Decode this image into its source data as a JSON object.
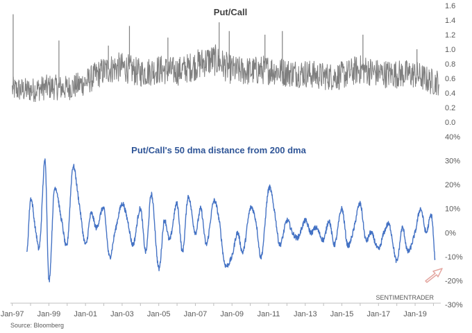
{
  "chart_data": [
    {
      "type": "line",
      "title": "Put/Call",
      "ylim": [
        0,
        1.6
      ],
      "y_ticks": [
        "1.6",
        "1.4",
        "1.2",
        "1.0",
        "0.8",
        "0.6",
        "0.4",
        "0.2",
        "0.0"
      ],
      "grid": false,
      "color": "#7f7f7f",
      "series": [
        {
          "x": [
            1997.0,
            1998.0,
            1999.0,
            2000.0,
            2001.0,
            2002.0,
            2003.0,
            2004.0,
            2005.0,
            2006.0,
            2007.0,
            2008.0,
            2009.0,
            2010.0,
            2011.0,
            2012.0,
            2013.0,
            2014.0,
            2015.0,
            2016.0,
            2017.0,
            2018.0,
            2019.0,
            2020.0
          ],
          "values": [
            0.45,
            0.44,
            0.48,
            0.47,
            0.55,
            0.7,
            0.75,
            0.68,
            0.72,
            0.7,
            0.78,
            0.85,
            0.72,
            0.7,
            0.72,
            0.68,
            0.67,
            0.63,
            0.64,
            0.72,
            0.67,
            0.66,
            0.65,
            0.55
          ],
          "spikes": [
            [
              1997.05,
              1.48
            ],
            [
              1999.55,
              1.12
            ],
            [
              2002.25,
              1.05
            ],
            [
              2003.4,
              1.32
            ],
            [
              2005.5,
              1.16
            ],
            [
              2008.3,
              1.37
            ],
            [
              2008.85,
              1.25
            ],
            [
              2010.8,
              1.2
            ],
            [
              2011.75,
              1.25
            ],
            [
              2016.15,
              1.2
            ],
            [
              2019.1,
              1.0
            ]
          ]
        }
      ]
    },
    {
      "type": "line",
      "title": "Put/Call's 50 dma distance from 200 dma",
      "ylim": [
        -30,
        40
      ],
      "y_ticks": [
        "40%",
        "30%",
        "20%",
        "10%",
        "0%",
        "-10%",
        "-20%",
        "-30%"
      ],
      "grid": false,
      "color": "#4472c4",
      "series": [
        {
          "x": [
            1997.8,
            1998.0,
            1998.3,
            1998.5,
            1998.8,
            1999.0,
            1999.3,
            1999.7,
            2000.0,
            2000.3,
            2000.6,
            2001.0,
            2001.3,
            2001.6,
            2002.0,
            2002.3,
            2002.6,
            2003.0,
            2003.3,
            2003.6,
            2004.0,
            2004.3,
            2004.6,
            2005.0,
            2005.3,
            2005.6,
            2006.0,
            2006.3,
            2006.6,
            2007.0,
            2007.3,
            2007.6,
            2008.0,
            2008.3,
            2008.6,
            2009.0,
            2009.3,
            2009.6,
            2010.0,
            2010.3,
            2010.6,
            2011.0,
            2011.3,
            2011.6,
            2012.0,
            2012.3,
            2012.6,
            2013.0,
            2013.3,
            2013.6,
            2014.0,
            2014.3,
            2014.6,
            2015.0,
            2015.3,
            2015.6,
            2016.0,
            2016.3,
            2016.6,
            2017.0,
            2017.3,
            2017.6,
            2018.0,
            2018.3,
            2018.6,
            2019.0,
            2019.3,
            2019.6,
            2019.9,
            2020.1
          ],
          "values": [
            -9,
            14,
            0,
            -5,
            30,
            -20,
            18,
            5,
            -5,
            27,
            15,
            -5,
            8,
            2,
            10,
            -10,
            0,
            12,
            5,
            -5,
            10,
            -8,
            16,
            -15,
            5,
            -3,
            12,
            -8,
            15,
            0,
            10,
            -5,
            13,
            5,
            -13,
            -10,
            0,
            -8,
            10,
            5,
            -10,
            18,
            10,
            -5,
            5,
            0,
            -2,
            5,
            0,
            2,
            -3,
            5,
            -5,
            10,
            -5,
            0,
            12,
            -3,
            0,
            -7,
            0,
            3,
            -12,
            2,
            -8,
            0,
            10,
            0,
            7,
            -12
          ]
        }
      ],
      "x_ticks": [
        "Jan-97",
        "Jan-99",
        "Jan-01",
        "Jan-03",
        "Jan-05",
        "Jan-07",
        "Jan-09",
        "Jan-11",
        "Jan-13",
        "Jan-15",
        "Jan-17",
        "Jan-19"
      ]
    }
  ],
  "watermark": "SENTIMENTRADER",
  "source": "Source: Bloomberg",
  "colors": {
    "arrow": "#e4a6a0",
    "axis": "#bfbfbf",
    "title_blue": "#2f5597",
    "title_dark": "#404040"
  }
}
